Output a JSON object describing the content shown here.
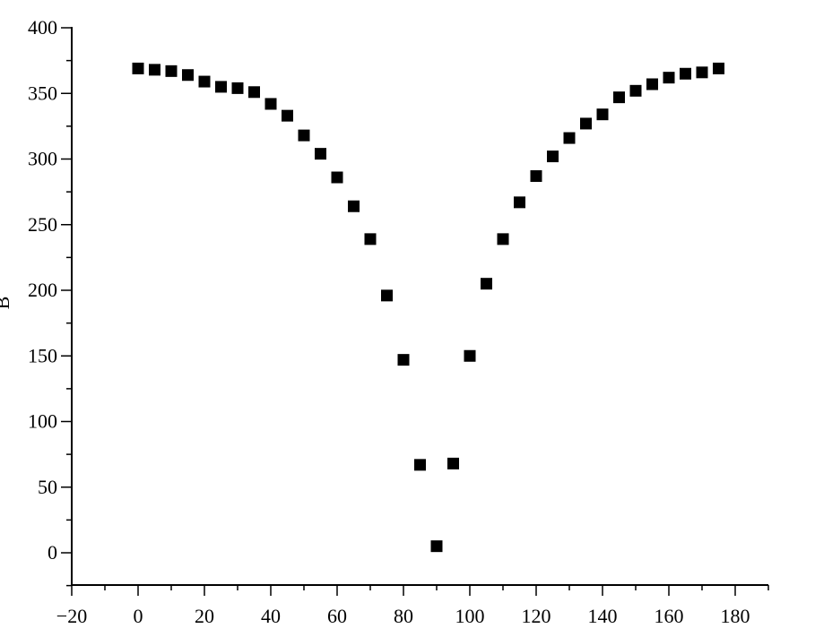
{
  "chart_data": {
    "type": "scatter",
    "title": "",
    "xlabel": "",
    "ylabel": "B",
    "xlim": [
      -20,
      185
    ],
    "ylim": [
      -25,
      400
    ],
    "x_ticks": [
      -20,
      0,
      20,
      40,
      60,
      80,
      100,
      120,
      140,
      160,
      180
    ],
    "x_tick_labels": [
      "−20",
      "0",
      "20",
      "40",
      "60",
      "80",
      "100",
      "120",
      "140",
      "160",
      "180"
    ],
    "y_ticks": [
      0,
      50,
      100,
      150,
      200,
      250,
      300,
      350,
      400
    ],
    "y_tick_labels": [
      "0",
      "50",
      "100",
      "150",
      "200",
      "250",
      "300",
      "350",
      "400"
    ],
    "grid": false,
    "legend": "none",
    "marker": "square",
    "marker_color": "#000000",
    "series": [
      {
        "x": [
          0,
          5,
          10,
          15,
          20,
          25,
          30,
          35,
          40,
          45,
          50,
          55,
          60,
          65,
          70,
          75,
          80,
          85,
          90,
          95,
          100,
          105,
          110,
          115,
          120,
          125,
          130,
          135,
          140,
          145,
          150,
          155,
          160,
          165,
          170,
          175
        ],
        "y": [
          369,
          368,
          367,
          364,
          359,
          355,
          354,
          351,
          342,
          333,
          318,
          304,
          286,
          264,
          239,
          196,
          147,
          67,
          5,
          68,
          150,
          205,
          239,
          267,
          287,
          302,
          316,
          327,
          334,
          347,
          352,
          357,
          362,
          365,
          366,
          369
        ]
      }
    ]
  }
}
